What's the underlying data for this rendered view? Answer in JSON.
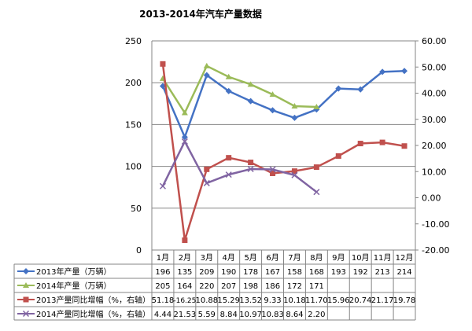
{
  "chart_data": {
    "type": "line",
    "title": "2013-2014年汽车产量数据",
    "categories": [
      "1月",
      "2月",
      "3月",
      "4月",
      "5月",
      "6月",
      "7月",
      "8月",
      "9月",
      "10月",
      "11月",
      "12月"
    ],
    "left_axis": {
      "ylim": [
        0,
        250
      ],
      "ticks": [
        "0",
        "50",
        "100",
        "150",
        "200",
        "250"
      ]
    },
    "right_axis": {
      "ylim": [
        -20,
        60
      ],
      "ticks": [
        "-20.00",
        "-10.00",
        "0.00",
        "10.00",
        "20.00",
        "30.00",
        "40.00",
        "50.00",
        "60.00"
      ]
    },
    "grid": true,
    "legend_placement": "data-table",
    "series": [
      {
        "name": "2013年产量（万辆）",
        "axis": "left",
        "color": "#4472C4",
        "marker": "diamond",
        "values": [
          196,
          135,
          209,
          190,
          178,
          167,
          158,
          168,
          193,
          192,
          213,
          214
        ],
        "labels": [
          "196",
          "135",
          "209",
          "190",
          "178",
          "167",
          "158",
          "168",
          "193",
          "192",
          "213",
          "214"
        ]
      },
      {
        "name": "2014年产量（万辆）",
        "axis": "left",
        "color": "#9BBB59",
        "marker": "triangle",
        "values": [
          205,
          164,
          220,
          207,
          198,
          186,
          172,
          171,
          null,
          null,
          null,
          null
        ],
        "labels": [
          "205",
          "164",
          "220",
          "207",
          "198",
          "186",
          "172",
          "171",
          "",
          "",
          "",
          ""
        ]
      },
      {
        "name": "2013产量同比增幅（%，右轴）",
        "axis": "right",
        "color": "#C0504D",
        "marker": "square",
        "values": [
          51.18,
          -16.25,
          10.88,
          15.29,
          13.52,
          9.33,
          10.18,
          11.7,
          15.96,
          20.74,
          21.17,
          19.78
        ],
        "labels": [
          "51.18",
          "-16.25",
          "10.88",
          "15.29",
          "13.52",
          "9.33",
          "10.18",
          "11.70",
          "15.96",
          "20.74",
          "21.17",
          "19.78"
        ]
      },
      {
        "name": "2014产量同比增幅（%，右轴）",
        "axis": "right",
        "color": "#8064A2",
        "marker": "x",
        "values": [
          4.44,
          21.53,
          5.59,
          8.84,
          10.97,
          10.83,
          8.64,
          2.2,
          null,
          null,
          null,
          null
        ],
        "labels": [
          "4.44",
          "21.53",
          "5.59",
          "8.84",
          "10.97",
          "10.83",
          "8.64",
          "2.20",
          "",
          "",
          "",
          ""
        ]
      }
    ]
  }
}
